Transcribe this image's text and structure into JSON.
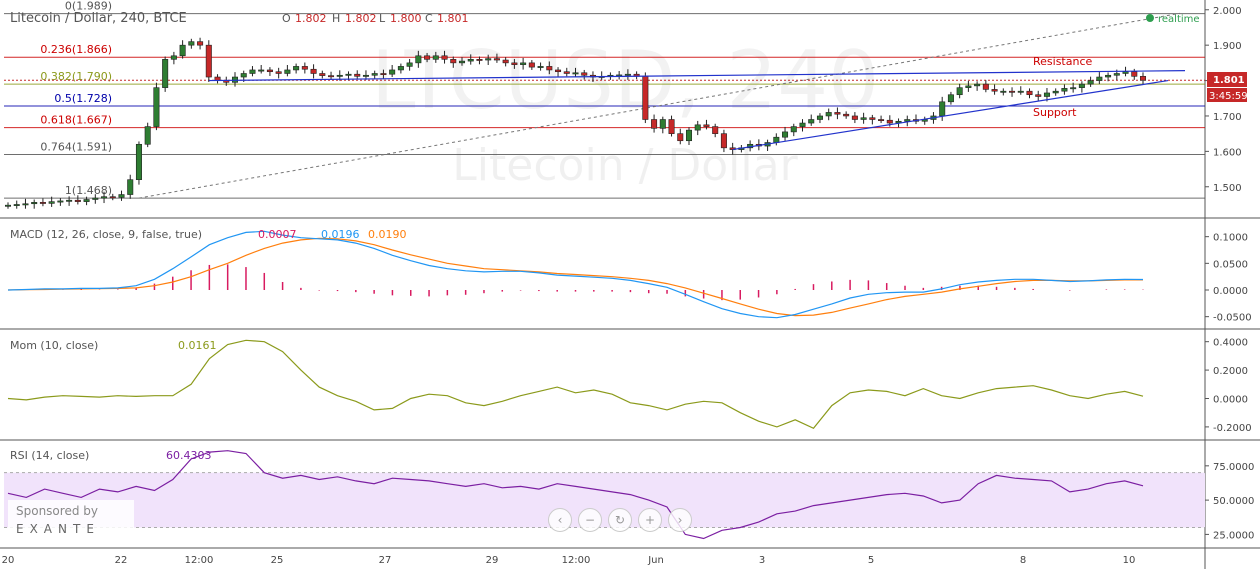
{
  "header": {
    "symbol_title": "Litecoin / Dollar, 240, BTCE",
    "ohlc": {
      "o_label": "O",
      "o": "1.802",
      "h_label": "H",
      "h": "1.802",
      "l_label": "L",
      "l": "1.800",
      "c_label": "C",
      "c": "1.801"
    },
    "realtime_label": "realtime"
  },
  "watermark": {
    "symbol": "LTCUSD, 240",
    "name": "Litecoin / Dollar"
  },
  "sponsor": {
    "line1": "Sponsored by",
    "brand": "EXANTE"
  },
  "navigation": {
    "buttons": [
      "‹",
      "−",
      "↻",
      "+",
      "›"
    ]
  },
  "colors": {
    "bull": "#2e7d32",
    "bear": "#c62828",
    "macd": "#2196f3",
    "signal": "#ff7f0e",
    "hist": "#d81b60",
    "mom": "#8b9a1b",
    "rsi": "#7b1fa2",
    "rsi_band": "#f1e3fb",
    "fib_red": "#cc0000",
    "fib_blue": "#0000aa",
    "fib_olive": "#8b9a1b",
    "fib_gray": "#555555",
    "trend": "#2233cc",
    "price_tag": "#c62828"
  },
  "chart_data": [
    {
      "type": "candlestick",
      "title": "Litecoin / Dollar, 240, BTCE",
      "ylim": [
        1.44,
        2.005
      ],
      "y_ticks": [
        "2.000",
        "1.900",
        "1.800",
        "1.700",
        "1.600",
        "1.500"
      ],
      "x_ticks": [
        "20",
        "22",
        "12:00",
        "25",
        "27",
        "29",
        "12:00",
        "Jun",
        "3",
        "5",
        "8",
        "10"
      ],
      "last_price": "1.801",
      "countdown": "3:45:59",
      "fib_levels": [
        {
          "label": "0(1.989)",
          "value": 1.989,
          "color": "#555555"
        },
        {
          "label": "0.236(1.866)",
          "value": 1.866,
          "color": "#cc0000"
        },
        {
          "label": "0.382(1.790)",
          "value": 1.79,
          "color": "#8b9a1b"
        },
        {
          "label": "0.5(1.728)",
          "value": 1.728,
          "color": "#0000aa"
        },
        {
          "label": "0.618(1.667)",
          "value": 1.667,
          "color": "#cc0000"
        },
        {
          "label": "0.764(1.591)",
          "value": 1.591,
          "color": "#555555"
        },
        {
          "label": "1(1.468)",
          "value": 1.468,
          "color": "#555555"
        }
      ],
      "annotations": [
        {
          "text": "Resistance",
          "color": "#cc0000"
        },
        {
          "text": "Support",
          "color": "#cc0000"
        }
      ],
      "trendlines": [
        "resistance",
        "support"
      ],
      "close": [
        1.448,
        1.45,
        1.452,
        1.456,
        1.453,
        1.458,
        1.46,
        1.462,
        1.458,
        1.464,
        1.468,
        1.472,
        1.47,
        1.478,
        1.52,
        1.62,
        1.67,
        1.78,
        1.86,
        1.87,
        1.9,
        1.91,
        1.9,
        1.81,
        1.8,
        1.795,
        1.81,
        1.82,
        1.83,
        1.83,
        1.825,
        1.82,
        1.83,
        1.84,
        1.832,
        1.82,
        1.814,
        1.812,
        1.815,
        1.818,
        1.812,
        1.815,
        1.82,
        1.818,
        1.83,
        1.84,
        1.85,
        1.87,
        1.86,
        1.87,
        1.86,
        1.85,
        1.855,
        1.86,
        1.858,
        1.862,
        1.858,
        1.85,
        1.845,
        1.85,
        1.838,
        1.84,
        1.83,
        1.825,
        1.82,
        1.822,
        1.815,
        1.81,
        1.812,
        1.815,
        1.816,
        1.818,
        1.812,
        1.69,
        1.665,
        1.69,
        1.65,
        1.63,
        1.66,
        1.675,
        1.67,
        1.65,
        1.61,
        1.605,
        1.61,
        1.62,
        1.615,
        1.625,
        1.64,
        1.655,
        1.67,
        1.68,
        1.69,
        1.7,
        1.71,
        1.705,
        1.7,
        1.69,
        1.695,
        1.69,
        1.688,
        1.68,
        1.685,
        1.69,
        1.685,
        1.69,
        1.7,
        1.74,
        1.76,
        1.78,
        1.785,
        1.79,
        1.775,
        1.77,
        1.77,
        1.768,
        1.77,
        1.76,
        1.755,
        1.765,
        1.77,
        1.778,
        1.78,
        1.79,
        1.8,
        1.81,
        1.815,
        1.82,
        1.825,
        1.812,
        1.801
      ]
    },
    {
      "type": "line",
      "title": "MACD (12, 26, close, 9, false, true)",
      "values_text": [
        "0.0007",
        "0.0196",
        "0.0190"
      ],
      "ylim": [
        -0.06,
        0.12
      ],
      "y_ticks": [
        "0.1000",
        "0.0500",
        "0.0000",
        "-0.0500"
      ],
      "series": [
        {
          "name": "MACD",
          "values": [
            0,
            0.001,
            0.002,
            0.002,
            0.003,
            0.003,
            0.004,
            0.008,
            0.02,
            0.04,
            0.062,
            0.085,
            0.098,
            0.108,
            0.11,
            0.103,
            0.098,
            0.096,
            0.094,
            0.088,
            0.078,
            0.065,
            0.055,
            0.046,
            0.04,
            0.036,
            0.034,
            0.035,
            0.035,
            0.032,
            0.028,
            0.026,
            0.024,
            0.022,
            0.018,
            0.012,
            0.005,
            -0.008,
            -0.022,
            -0.035,
            -0.044,
            -0.05,
            -0.052,
            -0.046,
            -0.036,
            -0.026,
            -0.015,
            -0.008,
            -0.005,
            -0.004,
            -0.004,
            0.002,
            0.01,
            0.015,
            0.018,
            0.02,
            0.02,
            0.018,
            0.016,
            0.017,
            0.019,
            0.02,
            0.0196
          ]
        },
        {
          "name": "Signal",
          "values": [
            0,
            0.0005,
            0.001,
            0.0015,
            0.002,
            0.0025,
            0.003,
            0.004,
            0.008,
            0.015,
            0.025,
            0.038,
            0.05,
            0.065,
            0.078,
            0.088,
            0.094,
            0.097,
            0.096,
            0.092,
            0.085,
            0.075,
            0.066,
            0.058,
            0.05,
            0.045,
            0.04,
            0.038,
            0.036,
            0.034,
            0.031,
            0.029,
            0.027,
            0.025,
            0.022,
            0.018,
            0.012,
            0.004,
            -0.006,
            -0.016,
            -0.026,
            -0.036,
            -0.044,
            -0.048,
            -0.047,
            -0.042,
            -0.034,
            -0.026,
            -0.018,
            -0.012,
            -0.008,
            -0.004,
            0.002,
            0.007,
            0.012,
            0.016,
            0.018,
            0.018,
            0.017,
            0.017,
            0.018,
            0.019,
            0.019
          ]
        },
        {
          "name": "Histogram",
          "values": [
            0,
            0.0005,
            0.001,
            0.0005,
            0.001,
            0.0005,
            0.001,
            0.004,
            0.012,
            0.025,
            0.037,
            0.047,
            0.048,
            0.043,
            0.032,
            0.015,
            0.004,
            -0.001,
            -0.002,
            -0.004,
            -0.007,
            -0.01,
            -0.011,
            -0.012,
            -0.01,
            -0.009,
            -0.006,
            -0.003,
            -0.001,
            -0.002,
            -0.003,
            -0.003,
            -0.003,
            -0.003,
            -0.004,
            -0.006,
            -0.007,
            -0.012,
            -0.016,
            -0.019,
            -0.018,
            -0.014,
            -0.008,
            0.002,
            0.011,
            0.016,
            0.019,
            0.018,
            0.013,
            0.008,
            0.004,
            0.006,
            0.008,
            0.008,
            0.006,
            0.004,
            0.002,
            0,
            -0.001,
            0,
            0.001,
            0.001,
            0.0007
          ]
        }
      ]
    },
    {
      "type": "line",
      "title": "Mom (10, close)",
      "values_text": [
        "0.0161"
      ],
      "ylim": [
        -0.25,
        0.44
      ],
      "y_ticks": [
        "0.4000",
        "0.2000",
        "0.0000",
        "-0.2000"
      ],
      "series": [
        {
          "name": "Mom",
          "values": [
            0,
            -0.01,
            0.01,
            0.02,
            0.015,
            0.01,
            0.02,
            0.015,
            0.02,
            0.02,
            0.1,
            0.28,
            0.38,
            0.41,
            0.4,
            0.33,
            0.2,
            0.08,
            0.02,
            -0.02,
            -0.08,
            -0.07,
            0,
            0.03,
            0.02,
            -0.03,
            -0.05,
            -0.02,
            0.02,
            0.05,
            0.08,
            0.04,
            0.06,
            0.03,
            -0.03,
            -0.05,
            -0.08,
            -0.04,
            -0.02,
            -0.03,
            -0.1,
            -0.16,
            -0.2,
            -0.15,
            -0.21,
            -0.05,
            0.04,
            0.06,
            0.05,
            0.02,
            0.07,
            0.02,
            0,
            0.04,
            0.07,
            0.08,
            0.09,
            0.06,
            0.02,
            0,
            0.03,
            0.05,
            0.0161
          ]
        }
      ]
    },
    {
      "type": "line",
      "title": "RSI (14, close)",
      "values_text": [
        "60.4303"
      ],
      "ylim": [
        18,
        88
      ],
      "y_ticks": [
        "75.0000",
        "50.0000",
        "25.0000"
      ],
      "series": [
        {
          "name": "RSI",
          "values": [
            55,
            52,
            58,
            55,
            52,
            58,
            56,
            60,
            57,
            65,
            80,
            85,
            86,
            84,
            70,
            66,
            68,
            65,
            67,
            64,
            62,
            66,
            65,
            64,
            62,
            60,
            62,
            59,
            60,
            58,
            62,
            60,
            58,
            56,
            54,
            50,
            45,
            25,
            22,
            28,
            30,
            34,
            40,
            42,
            46,
            48,
            50,
            52,
            54,
            55,
            53,
            48,
            50,
            62,
            68,
            66,
            65,
            64,
            56,
            58,
            62,
            64,
            60.43
          ]
        }
      ]
    }
  ]
}
